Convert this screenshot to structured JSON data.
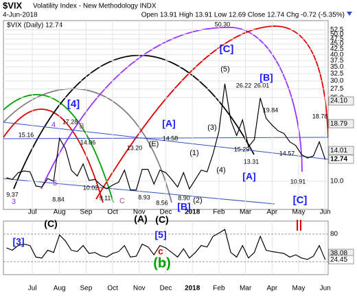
{
  "header": {
    "symbol": "$VIX",
    "name": "Volatility Index - New Methodology INDX",
    "date": "4-Jun-2018",
    "quote": "Open 13.91 High 13.91 Low 12.69 Close 12.74 Chg -0.72 (-5.35%)"
  },
  "chart_data": [
    {
      "type": "line",
      "legend": "$VIX (Daily) 12.74",
      "log": true,
      "color": "#000000",
      "values": [
        10.4,
        10.2,
        11.0,
        11.2,
        11.1,
        9.5,
        9.4,
        10.3,
        10.0,
        16.0,
        14.3,
        11.3,
        10.6,
        12.1,
        10.1,
        10.2,
        9.6,
        9.2,
        9.6,
        9.9,
        11.3,
        9.1,
        9.1,
        11.4,
        11.4,
        9.7,
        11.3,
        11.0,
        10.2,
        9.4,
        11.0,
        9.2,
        10.2,
        11.3,
        11.1,
        13.5,
        17.3,
        29.1,
        19.5,
        16.5,
        19.6,
        14.6,
        15.8,
        24.9,
        19.9,
        18.5,
        17.4,
        16.9,
        15.4,
        14.8,
        13.4,
        12.9,
        13.2,
        15.4,
        12.7
      ],
      "xlim": [
        -0.5,
        54.5
      ],
      "xticks": [
        {
          "value": 4.4,
          "label": "Jul"
        },
        {
          "value": 9,
          "label": "Aug"
        },
        {
          "value": 13.5,
          "label": "Sep"
        },
        {
          "value": 18,
          "label": "Oct"
        },
        {
          "value": 22.5,
          "label": "Nov"
        },
        {
          "value": 27,
          "label": "Dec"
        },
        {
          "value": 31.5,
          "label": "2018"
        },
        {
          "value": 36,
          "label": "Feb"
        },
        {
          "value": 40.5,
          "label": "Mar"
        },
        {
          "value": 45,
          "label": "Apr"
        },
        {
          "value": 49.5,
          "label": "May"
        },
        {
          "value": 54,
          "label": "Jun"
        }
      ],
      "ylim": [
        7.35,
        58.1
      ],
      "yticks": [
        {
          "value": 10,
          "label": "10.0"
        },
        {
          "value": 25,
          "label": "25.0"
        },
        27.5,
        {
          "value": 30,
          "label": "30.0"
        },
        32.5,
        {
          "value": 35,
          "label": "35.0"
        },
        37.5,
        {
          "value": 40,
          "label": "40.0"
        },
        42.5,
        {
          "value": 45,
          "label": "45.0"
        },
        47.5,
        {
          "value": 50,
          "label": "50.0"
        },
        52.5
      ],
      "right_labels": [
        {
          "value": 24.1,
          "label": "24.10"
        },
        18.79,
        14.01,
        12.74
      ],
      "annotations": [
        {
          "text": "[C]",
          "color": "#1a1aff"
        },
        {
          "text": "[4]",
          "color": "#1a1aff"
        },
        {
          "text": "[A]",
          "color": "#1a1aff"
        },
        {
          "text": "[A]",
          "color": "#1a1aff"
        },
        {
          "text": "[B]",
          "color": "#1a1aff"
        },
        {
          "text": "[C]",
          "color": "#1a1aff"
        },
        {
          "text": "[B]",
          "color": "#1a1aff"
        },
        {
          "text": "(5)",
          "color": "#000000"
        },
        {
          "text": "(3)",
          "color": "#000000"
        },
        {
          "text": "(4)",
          "color": "#000000"
        },
        {
          "text": "(1)",
          "color": "#000000"
        },
        {
          "text": "(2)",
          "color": "#000000"
        },
        {
          "text": "(E)",
          "color": "#000000"
        },
        {
          "text": "4",
          "color": "#8a2be2"
        },
        {
          "text": "B",
          "color": "#a05080"
        },
        {
          "text": "3",
          "color": "#8a2be2"
        },
        {
          "text": "5",
          "color": "#8a2be2"
        },
        {
          "text": "C",
          "color": "#a05080"
        },
        {
          "text": "17.28",
          "color": "#000000"
        },
        {
          "text": "15.16",
          "color": "#000000"
        },
        {
          "text": "14.06",
          "color": "#000000"
        },
        {
          "text": "13.20",
          "color": "#000000"
        },
        {
          "text": "14.58",
          "color": "#000000"
        },
        {
          "text": "10.02",
          "color": "#000000"
        },
        {
          "text": "9.11",
          "color": "#000000"
        },
        {
          "text": "8.93",
          "color": "#000000"
        },
        {
          "text": "8.56",
          "color": "#000000"
        },
        {
          "text": "8.84",
          "color": "#000000"
        },
        {
          "text": "9.37",
          "color": "#000000"
        },
        {
          "text": "8.90",
          "color": "#000000"
        },
        {
          "text": "50.30",
          "color": "#000000"
        },
        {
          "text": "26.22",
          "color": "#000000"
        },
        {
          "text": "26.01",
          "color": "#000000"
        },
        {
          "text": "19.84",
          "color": "#000000"
        },
        {
          "text": "18.78",
          "color": "#000000"
        },
        {
          "text": "15.29",
          "color": "#000000"
        },
        {
          "text": "13.31",
          "color": "#000000"
        },
        {
          "text": "14.57",
          "color": "#000000"
        },
        {
          "text": "10.91",
          "color": "#000000"
        }
      ]
    },
    {
      "type": "line",
      "color": "#000000",
      "values": [
        50,
        45,
        55,
        58,
        55,
        30,
        28,
        45,
        40,
        78,
        65,
        45,
        42,
        55,
        38,
        40,
        33,
        30,
        38,
        42,
        55,
        30,
        32,
        58,
        52,
        35,
        55,
        50,
        40,
        30,
        48,
        28,
        40,
        55,
        52,
        75,
        82,
        90,
        40,
        30,
        55,
        28,
        40,
        75,
        45,
        42,
        40,
        38,
        30,
        35,
        28,
        25,
        32,
        55,
        24.45
      ],
      "xlim": [
        -0.5,
        54.5
      ],
      "xticks": [
        {
          "value": 4.4,
          "label": "Jul"
        },
        {
          "value": 9,
          "label": "Aug"
        },
        {
          "value": 13.5,
          "label": "Sep"
        },
        {
          "value": 18,
          "label": "Oct"
        },
        {
          "value": 22.5,
          "label": "Nov"
        },
        {
          "value": 27,
          "label": "Dec"
        },
        {
          "value": 31.5,
          "label": "2018"
        },
        {
          "value": 36,
          "label": "Feb"
        },
        {
          "value": 40.5,
          "label": "Mar"
        },
        {
          "value": 45,
          "label": "Apr"
        },
        {
          "value": 49.5,
          "label": "May"
        },
        {
          "value": 54,
          "label": "Jun"
        }
      ],
      "ylim": [
        -8,
        108
      ],
      "yticks": [
        80,
        20
      ],
      "right_labels": [
        38.08,
        24.45
      ],
      "annotations": [
        {
          "text": "(C)",
          "color": "#000000"
        },
        {
          "text": "[3]",
          "color": "#1a1aff"
        },
        {
          "text": "(A)",
          "color": "#000000"
        },
        {
          "text": "(C)",
          "color": "#000000"
        },
        {
          "text": "[5]",
          "color": "#1a1aff"
        },
        {
          "text": "c",
          "color": "#e00000"
        },
        {
          "text": "(b)",
          "color": "#00a000"
        },
        {
          "text": "II",
          "color": "#e00000"
        }
      ]
    }
  ]
}
